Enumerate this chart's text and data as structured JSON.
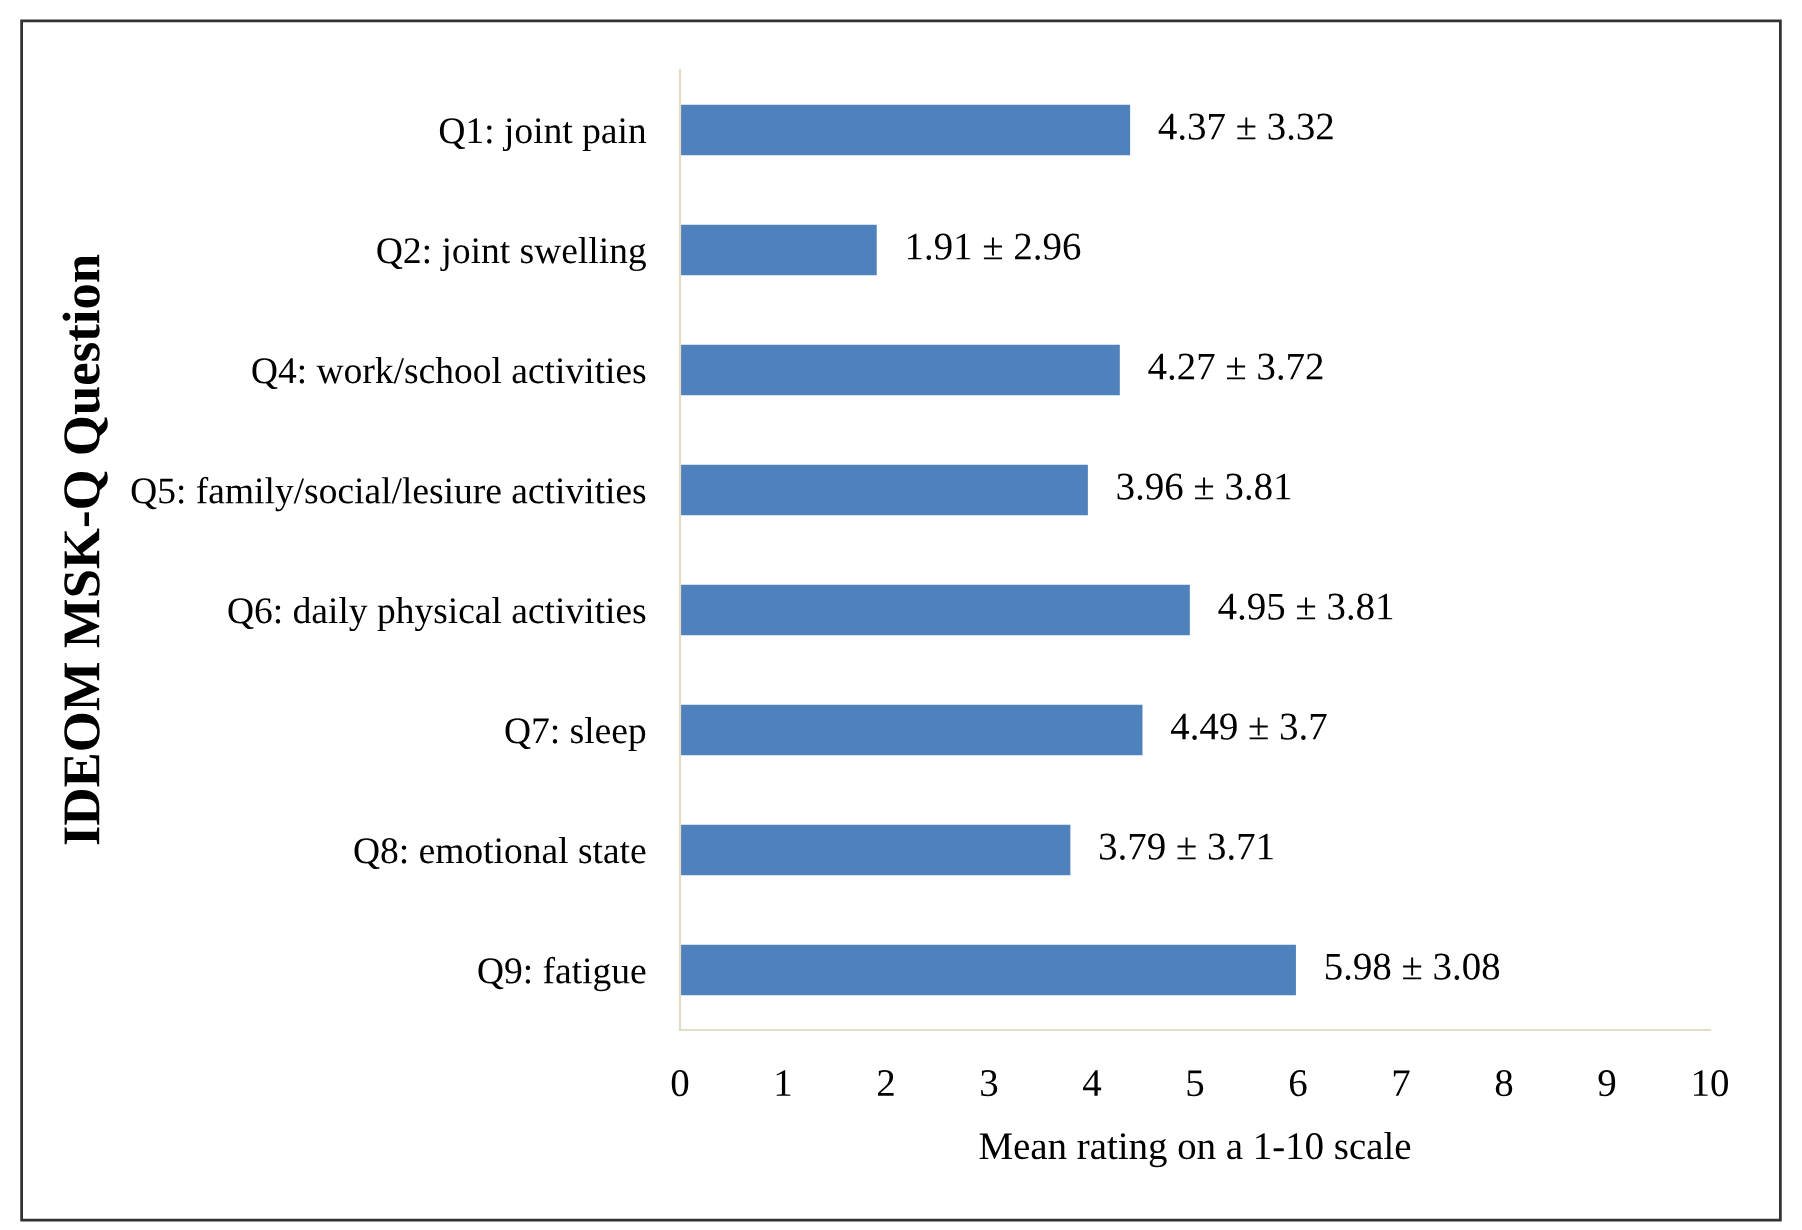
{
  "chart_data": {
    "type": "bar",
    "orientation": "horizontal",
    "ylabel": "IDEOM MSK-Q Question",
    "xlabel": "Mean rating on a 1-10 scale",
    "categories": [
      "Q1: joint pain",
      "Q2: joint swelling",
      "Q4: work/school activities",
      "Q5: family/social/lesiure activities",
      "Q6: daily physical activities",
      "Q7: sleep",
      "Q8: emotional state",
      "Q9: fatigue"
    ],
    "values": [
      4.37,
      1.91,
      4.27,
      3.96,
      4.95,
      4.49,
      3.79,
      5.98
    ],
    "value_labels": [
      "4.37 ± 3.32",
      "1.91 ± 2.96",
      "4.27 ± 3.72",
      "3.96 ± 3.81",
      "4.95 ± 3.81",
      "4.49 ± 3.7",
      "3.79 ± 3.71",
      "5.98 ± 3.08"
    ],
    "color": "#4f81bd",
    "xlim": [
      0,
      10
    ],
    "xticks": [
      0,
      1,
      2,
      3,
      4,
      5,
      6,
      7,
      8,
      9,
      10
    ],
    "grid": false,
    "legend": false
  }
}
